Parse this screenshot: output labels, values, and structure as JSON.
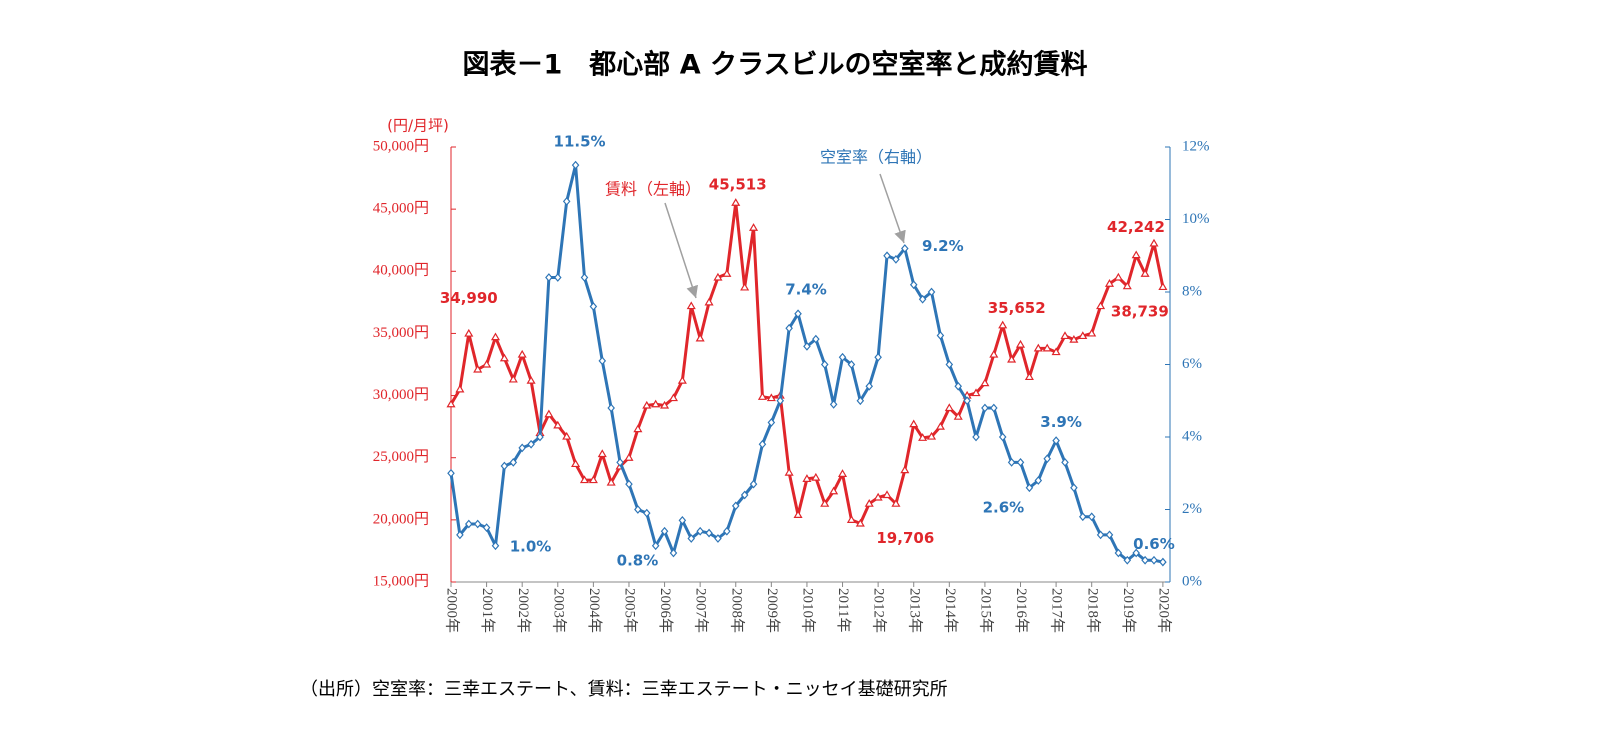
{
  "chart_data": {
    "type": "line",
    "title": "図表－1　都心部 A クラスビルの空室率と成約賃料",
    "y_label": "(円/月坪)",
    "source": "（出所）空室率：三幸エステート、賃料：三幸エステート・ニッセイ基礎研究所",
    "x": [
      2000,
      2000.25,
      2000.5,
      2000.75,
      2001,
      2001.25,
      2001.5,
      2001.75,
      2002,
      2002.25,
      2002.5,
      2002.75,
      2003,
      2003.25,
      2003.5,
      2003.75,
      2004,
      2004.25,
      2004.5,
      2004.75,
      2005,
      2005.25,
      2005.5,
      2005.75,
      2006,
      2006.25,
      2006.5,
      2006.75,
      2007,
      2007.25,
      2007.5,
      2007.75,
      2008,
      2008.25,
      2008.5,
      2008.75,
      2009,
      2009.25,
      2009.5,
      2009.75,
      2010,
      2010.25,
      2010.5,
      2010.75,
      2011,
      2011.25,
      2011.5,
      2011.75,
      2012,
      2012.25,
      2012.5,
      2012.75,
      2013,
      2013.25,
      2013.5,
      2013.75,
      2014,
      2014.25,
      2014.5,
      2014.75,
      2015,
      2015.25,
      2015.5,
      2015.75,
      2016,
      2016.25,
      2016.5,
      2016.75,
      2017,
      2017.25,
      2017.5,
      2017.75,
      2018,
      2018.25,
      2018.5,
      2018.75,
      2019,
      2019.25,
      2019.5,
      2019.75,
      2020
    ],
    "xlim": [
      2000,
      2020.2
    ],
    "xticks": [
      {
        "value": 2000,
        "label": "2000年"
      },
      {
        "value": 2001,
        "label": "2001年"
      },
      {
        "value": 2002,
        "label": "2002年"
      },
      {
        "value": 2003,
        "label": "2003年"
      },
      {
        "value": 2004,
        "label": "2004年"
      },
      {
        "value": 2005,
        "label": "2005年"
      },
      {
        "value": 2006,
        "label": "2006年"
      },
      {
        "value": 2007,
        "label": "2007年"
      },
      {
        "value": 2008,
        "label": "2008年"
      },
      {
        "value": 2009,
        "label": "2009年"
      },
      {
        "value": 2010,
        "label": "2010年"
      },
      {
        "value": 2011,
        "label": "2011年"
      },
      {
        "value": 2012,
        "label": "2012年"
      },
      {
        "value": 2013,
        "label": "2013年"
      },
      {
        "value": 2014,
        "label": "2014年"
      },
      {
        "value": 2015,
        "label": "2015年"
      },
      {
        "value": 2016,
        "label": "2016年"
      },
      {
        "value": 2017,
        "label": "2017年"
      },
      {
        "value": 2018,
        "label": "2018年"
      },
      {
        "value": 2019,
        "label": "2019年"
      },
      {
        "value": 2020,
        "label": "2020年"
      }
    ],
    "ylim": [
      15000,
      50000
    ],
    "yticks": [
      {
        "value": 15000,
        "label": "15,000円"
      },
      {
        "value": 20000,
        "label": "20,000円"
      },
      {
        "value": 25000,
        "label": "25,000円"
      },
      {
        "value": 30000,
        "label": "30,000円"
      },
      {
        "value": 35000,
        "label": "35,000円"
      },
      {
        "value": 40000,
        "label": "40,000円"
      },
      {
        "value": 45000,
        "label": "45,000円"
      },
      {
        "value": 50000,
        "label": "50,000円"
      }
    ],
    "y2lim": [
      0,
      12
    ],
    "y2ticks": [
      {
        "value": 0,
        "label": "0%"
      },
      {
        "value": 2,
        "label": "2%"
      },
      {
        "value": 4,
        "label": "4%"
      },
      {
        "value": 6,
        "label": "6%"
      },
      {
        "value": 8,
        "label": "8%"
      },
      {
        "value": 10,
        "label": "10%"
      },
      {
        "value": 12,
        "label": "12%"
      }
    ],
    "grid": false,
    "series": [
      {
        "name": "賃料（左軸）",
        "color": "#e0262b",
        "axis": "y",
        "marker": "triangle",
        "values": [
          29300,
          30500,
          34990,
          32100,
          32500,
          34700,
          33000,
          31300,
          33300,
          31200,
          27000,
          28500,
          27600,
          26700,
          24500,
          23200,
          23200,
          25300,
          23000,
          24300,
          25000,
          27300,
          29200,
          29300,
          29200,
          29800,
          31200,
          37200,
          34600,
          37500,
          39500,
          39800,
          45513,
          38700,
          43500,
          29900,
          29800,
          30000,
          23800,
          20400,
          23300,
          23400,
          21300,
          22300,
          23700,
          20000,
          19706,
          21300,
          21800,
          22000,
          21300,
          24000,
          27700,
          26600,
          26700,
          27500,
          29000,
          28300,
          30000,
          30200,
          31000,
          33300,
          35652,
          32900,
          34100,
          31500,
          33800,
          33800,
          33500,
          34800,
          34500,
          34800,
          35000,
          37200,
          39000,
          39500,
          38800,
          41300,
          39800,
          42242,
          38739
        ],
        "value_labels": [
          null,
          null,
          "34,990",
          null,
          null,
          null,
          null,
          null,
          null,
          null,
          null,
          null,
          null,
          null,
          null,
          null,
          null,
          null,
          null,
          null,
          null,
          null,
          null,
          null,
          null,
          null,
          null,
          null,
          null,
          null,
          null,
          null,
          "45,513",
          null,
          null,
          null,
          null,
          null,
          null,
          null,
          null,
          null,
          null,
          null,
          null,
          null,
          "19,706",
          null,
          null,
          null,
          null,
          null,
          null,
          null,
          null,
          null,
          null,
          null,
          null,
          null,
          null,
          null,
          "35,652",
          null,
          null,
          null,
          null,
          null,
          null,
          null,
          null,
          null,
          null,
          null,
          null,
          null,
          null,
          null,
          null,
          "42,242",
          "38,739"
        ]
      },
      {
        "name": "空室率（右軸）",
        "color": "#2e75b6",
        "axis": "y2",
        "marker": "diamond",
        "values": [
          3.0,
          1.3,
          1.6,
          1.6,
          1.5,
          1.0,
          3.2,
          3.3,
          3.7,
          3.8,
          4.0,
          8.4,
          8.4,
          10.5,
          11.5,
          8.4,
          7.6,
          6.1,
          4.8,
          3.3,
          2.7,
          2.0,
          1.9,
          1.0,
          1.4,
          0.8,
          1.7,
          1.2,
          1.4,
          1.35,
          1.2,
          1.4,
          2.1,
          2.4,
          2.7,
          3.8,
          4.4,
          5.0,
          7.0,
          7.4,
          6.5,
          6.7,
          6.0,
          4.9,
          6.2,
          6.0,
          5.0,
          5.4,
          6.2,
          9.0,
          8.9,
          9.2,
          8.2,
          7.8,
          8.0,
          6.8,
          6.0,
          5.4,
          5.0,
          4.0,
          4.8,
          4.8,
          4.0,
          3.3,
          3.3,
          2.6,
          2.8,
          3.4,
          3.9,
          3.3,
          2.6,
          1.8,
          1.8,
          1.3,
          1.3,
          0.8,
          0.6,
          0.8,
          0.6,
          0.6,
          0.55
        ],
        "value_labels": [
          null,
          null,
          null,
          null,
          null,
          "1.0%",
          null,
          null,
          null,
          null,
          null,
          null,
          null,
          null,
          "11.5%",
          null,
          null,
          null,
          null,
          null,
          null,
          null,
          null,
          null,
          null,
          "0.8%",
          null,
          null,
          null,
          null,
          null,
          null,
          null,
          null,
          null,
          null,
          null,
          null,
          null,
          "7.4%",
          null,
          null,
          null,
          null,
          null,
          null,
          null,
          null,
          null,
          null,
          null,
          "9.2%",
          null,
          null,
          null,
          null,
          null,
          null,
          null,
          null,
          null,
          null,
          null,
          null,
          null,
          "2.6%",
          null,
          null,
          "3.9%",
          null,
          null,
          null,
          null,
          null,
          null,
          null,
          null,
          null,
          null,
          "0.6%",
          null
        ]
      }
    ]
  }
}
